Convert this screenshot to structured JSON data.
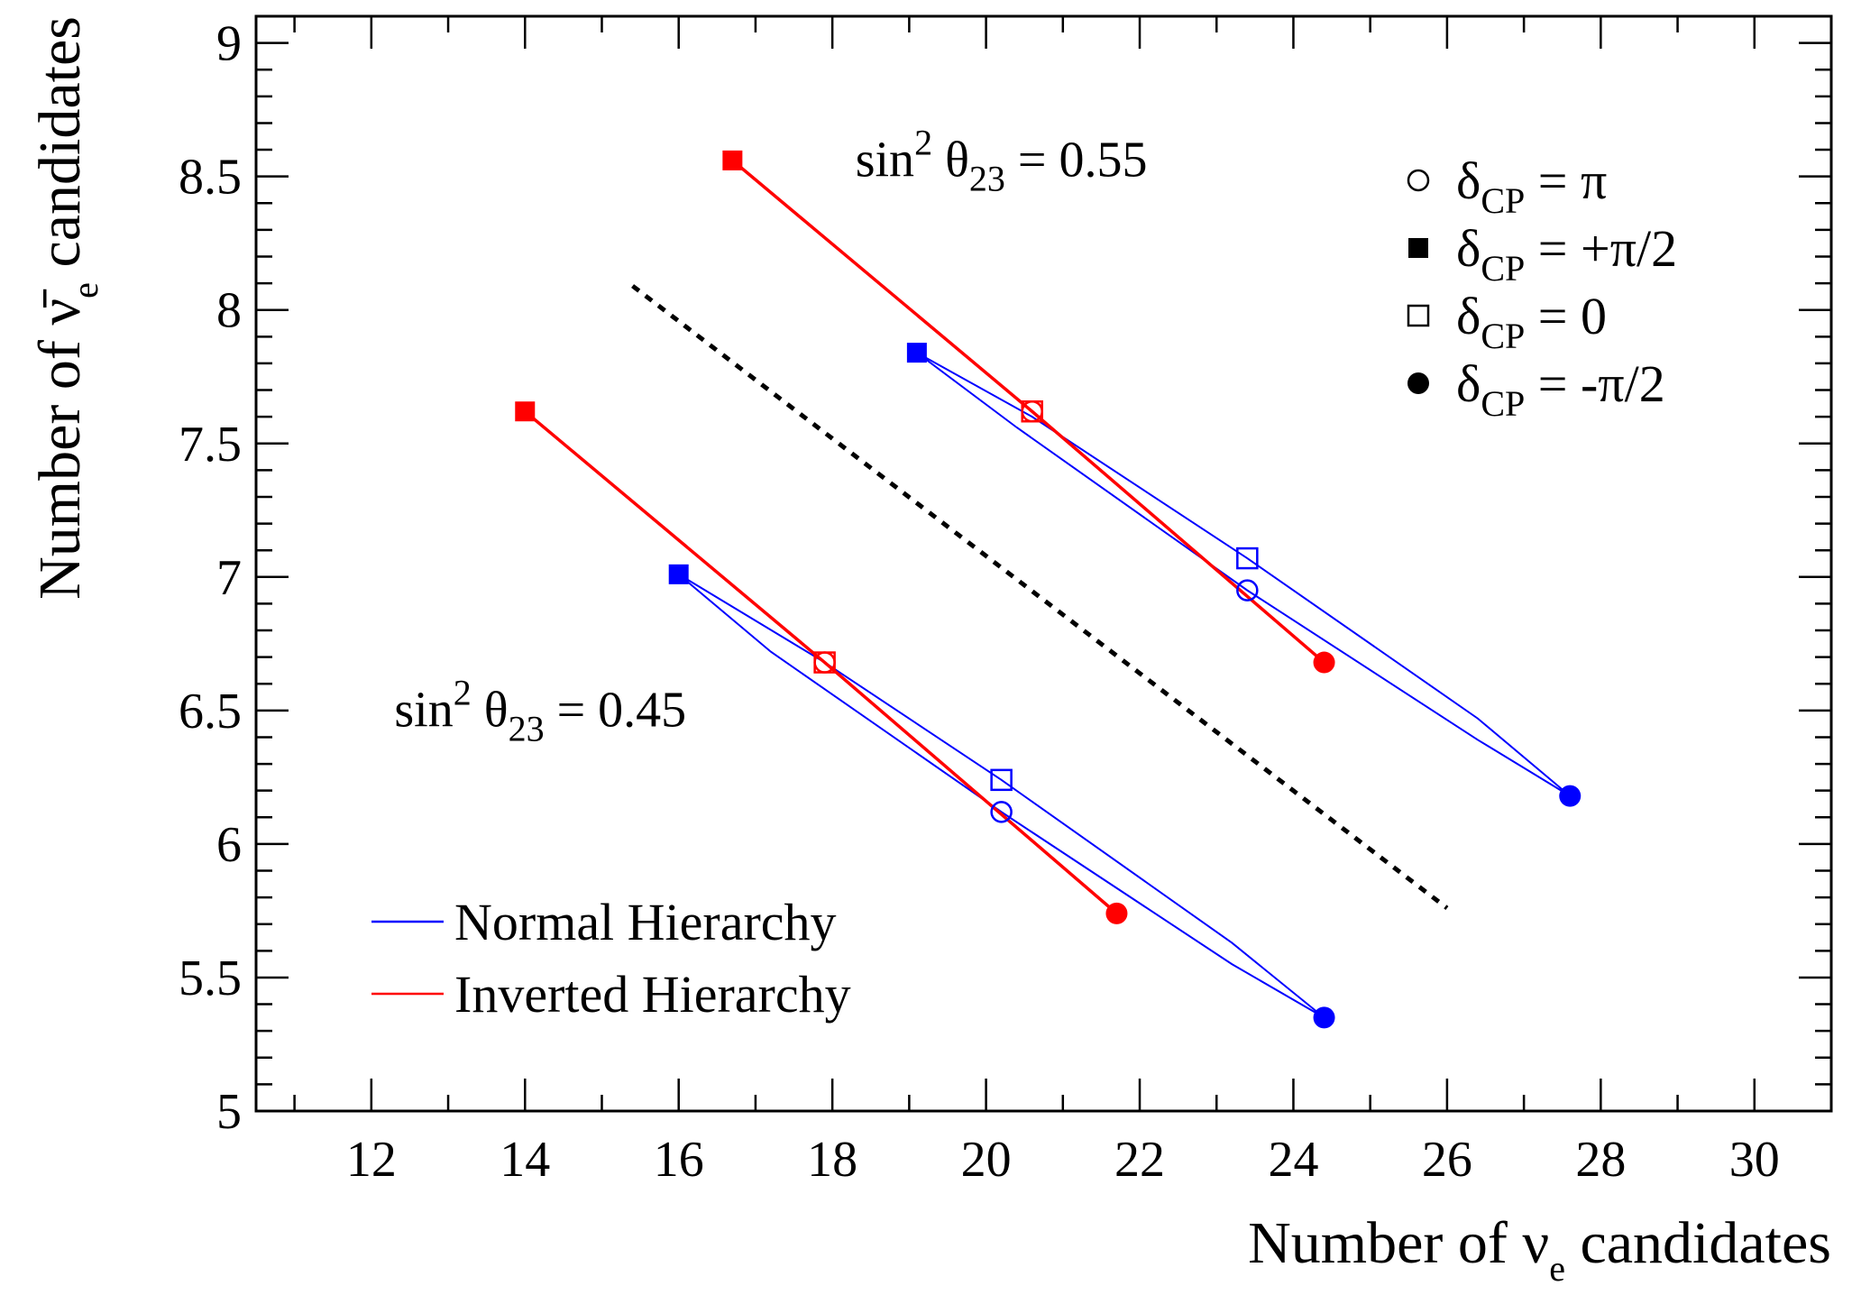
{
  "chart_data": {
    "type": "line",
    "xlabel": {
      "main": "Number of ν",
      "sub": "e",
      "tail": " candidates"
    },
    "ylabel": {
      "main": "Number of ν̄",
      "sub": "e",
      "tail": " candidates"
    },
    "xlim": [
      10.5,
      31
    ],
    "ylim": [
      5,
      9.1
    ],
    "xticks": [
      12,
      14,
      16,
      18,
      20,
      22,
      24,
      26,
      28,
      30
    ],
    "xtick_labels": [
      "12",
      "14",
      "16",
      "18",
      "20",
      "22",
      "24",
      "26",
      "28",
      "30"
    ],
    "yticks": [
      5,
      5.5,
      6,
      6.5,
      7,
      7.5,
      8,
      8.5,
      9
    ],
    "ytick_labels": [
      "5",
      "5.5",
      "6",
      "6.5",
      "7",
      "7.5",
      "8",
      "8.5",
      "9"
    ],
    "grid": false,
    "colors": {
      "normal": "#0000ff",
      "inverted": "#ff0000",
      "divider": "#000000"
    },
    "annotations": [
      {
        "id": "s055",
        "text_pre": "sin",
        "sup": "2",
        "theta": " θ",
        "sub": "23",
        "text_post": " = 0.55",
        "x": 18.3,
        "y": 8.5
      },
      {
        "id": "s045",
        "text_pre": "sin",
        "sup": "2",
        "theta": " θ",
        "sub": "23",
        "text_post": " = 0.45",
        "x": 12.3,
        "y": 6.44
      }
    ],
    "divider": {
      "x": [
        15.4,
        26.0
      ],
      "y": [
        8.09,
        5.76
      ]
    },
    "ellipses": [
      {
        "hierarchy": "normal",
        "theta": 0.55,
        "points": [
          [
            19.1,
            7.84
          ],
          [
            20.6,
            7.6
          ],
          [
            23.4,
            7.07
          ],
          [
            26.4,
            6.47
          ],
          [
            27.6,
            6.18
          ],
          [
            26.4,
            6.39
          ],
          [
            23.4,
            6.95
          ],
          [
            20.4,
            7.56
          ],
          [
            19.1,
            7.84
          ]
        ]
      },
      {
        "hierarchy": "normal",
        "theta": 0.45,
        "points": [
          [
            16.0,
            7.01
          ],
          [
            17.9,
            6.68
          ],
          [
            20.2,
            6.24
          ],
          [
            23.2,
            5.63
          ],
          [
            24.4,
            5.35
          ],
          [
            23.2,
            5.55
          ],
          [
            20.2,
            6.12
          ],
          [
            17.2,
            6.72
          ],
          [
            16.0,
            7.01
          ]
        ]
      }
    ],
    "series": [
      {
        "name": "Normal Hierarchy",
        "hierarchy": "normal",
        "theta": 0.55,
        "points": [
          {
            "delta": "pi/2",
            "x": 19.1,
            "y": 7.84
          },
          {
            "delta": "0",
            "x": 23.4,
            "y": 7.07
          },
          {
            "delta": "-pi/2",
            "x": 27.6,
            "y": 6.18
          },
          {
            "delta": "pi",
            "x": 23.4,
            "y": 6.95
          }
        ]
      },
      {
        "name": "Normal Hierarchy",
        "hierarchy": "normal",
        "theta": 0.45,
        "points": [
          {
            "delta": "pi/2",
            "x": 16.0,
            "y": 7.01
          },
          {
            "delta": "0",
            "x": 20.2,
            "y": 6.24
          },
          {
            "delta": "-pi/2",
            "x": 24.4,
            "y": 5.35
          },
          {
            "delta": "pi",
            "x": 20.2,
            "y": 6.12
          }
        ]
      },
      {
        "name": "Inverted Hierarchy",
        "hierarchy": "inverted",
        "theta": 0.55,
        "points": [
          {
            "delta": "pi/2",
            "x": 16.7,
            "y": 8.56
          },
          {
            "delta": "0",
            "x": 20.6,
            "y": 7.62
          },
          {
            "delta": "pi",
            "x": 20.6,
            "y": 7.62
          },
          {
            "delta": "-pi/2",
            "x": 24.4,
            "y": 6.68
          }
        ]
      },
      {
        "name": "Inverted Hierarchy",
        "hierarchy": "inverted",
        "theta": 0.45,
        "points": [
          {
            "delta": "pi/2",
            "x": 14.0,
            "y": 7.62
          },
          {
            "delta": "0",
            "x": 17.9,
            "y": 6.68
          },
          {
            "delta": "pi",
            "x": 17.9,
            "y": 6.68
          },
          {
            "delta": "-pi/2",
            "x": 21.7,
            "y": 5.74
          }
        ]
      }
    ],
    "marker_legend": [
      {
        "delta": "pi",
        "symbol": "open-circle",
        "label_pre": "δ",
        "label_sub": "CP",
        "label_post": " = π"
      },
      {
        "delta": "pi/2",
        "symbol": "filled-square",
        "label_pre": "δ",
        "label_sub": "CP",
        "label_post": " = +π/2"
      },
      {
        "delta": "0",
        "symbol": "open-square",
        "label_pre": "δ",
        "label_sub": "CP",
        "label_post": " = 0"
      },
      {
        "delta": "-pi/2",
        "symbol": "filled-circle",
        "label_pre": "δ",
        "label_sub": "CP",
        "label_post": " = -π/2"
      }
    ],
    "line_legend": [
      {
        "hierarchy": "normal",
        "label": "Normal Hierarchy"
      },
      {
        "hierarchy": "inverted",
        "label": "Inverted Hierarchy"
      }
    ]
  }
}
